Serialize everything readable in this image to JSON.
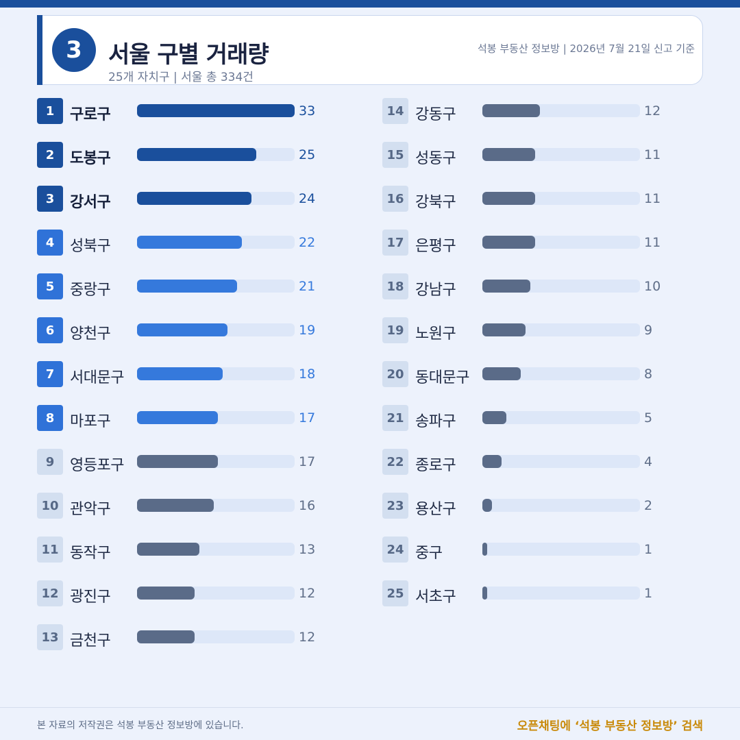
{
  "header": {
    "badge": "3",
    "title": "서울 구별 거래량",
    "subtitle": "25개 자치구 | 서울 총 334건",
    "source": "석봉 부동산 정보방 | 2026년 7월 21일 신고 기준"
  },
  "colors": {
    "primary": "#1a4f9c",
    "secondary": "#3579dc",
    "muted": "#5a6b88",
    "track": "#dde7f8",
    "background": "#edf2fc",
    "footer_accent": "#c98a0a"
  },
  "chart_data": {
    "type": "bar",
    "orientation": "horizontal",
    "xlim": [
      0,
      33
    ],
    "categories": [
      "구로구",
      "도봉구",
      "강서구",
      "성북구",
      "중랑구",
      "양천구",
      "서대문구",
      "마포구",
      "영등포구",
      "관악구",
      "동작구",
      "광진구",
      "금천구",
      "강동구",
      "성동구",
      "강북구",
      "은평구",
      "강남구",
      "노원구",
      "동대문구",
      "송파구",
      "종로구",
      "용산구",
      "중구",
      "서초구"
    ],
    "ranks": [
      "1",
      "2",
      "3",
      "4",
      "5",
      "6",
      "7",
      "8",
      "9",
      "10",
      "11",
      "12",
      "13",
      "14",
      "15",
      "16",
      "17",
      "18",
      "19",
      "20",
      "21",
      "22",
      "23",
      "24",
      "25"
    ],
    "values": [
      33,
      25,
      24,
      22,
      21,
      19,
      18,
      17,
      17,
      16,
      13,
      12,
      12,
      12,
      11,
      11,
      11,
      10,
      9,
      8,
      5,
      4,
      2,
      1,
      1
    ]
  },
  "footer": {
    "copyright": "본 자료의 저작권은 석봉 부동산 정보방에 있습니다.",
    "cta": "오픈채팅에 ‘석봉 부동산 정보방’ 검색"
  }
}
